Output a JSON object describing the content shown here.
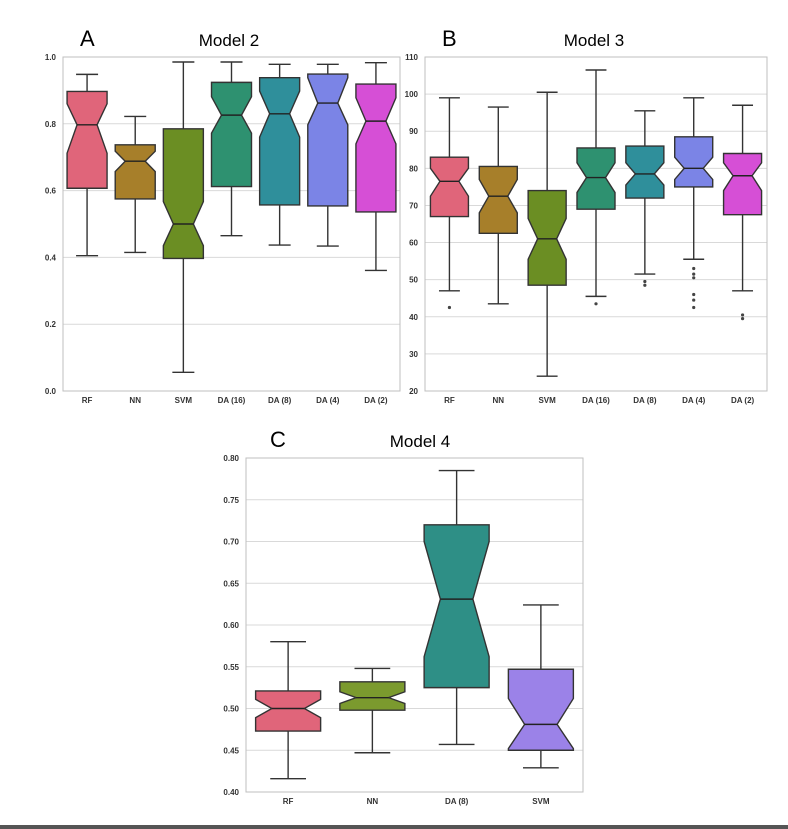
{
  "chart_data": [
    {
      "type": "box",
      "panel_label": "A",
      "title": "Model 2",
      "notched": true,
      "ylim": [
        0.0,
        1.0
      ],
      "yticks": [
        "0.0",
        "0.2",
        "0.4",
        "0.6",
        "0.8",
        "1.0"
      ],
      "ytick_values": [
        0.0,
        0.2,
        0.4,
        0.6,
        0.8,
        1.0
      ],
      "grid": true,
      "categories": [
        "RF",
        "NN",
        "SVM",
        "DA (16)",
        "DA (8)",
        "DA (4)",
        "DA (2)"
      ],
      "boxes": [
        {
          "whislo": 0.405,
          "q1": 0.607,
          "med": 0.797,
          "q3": 0.897,
          "whishi": 0.948,
          "notch_lo": 0.712,
          "notch_hi": 0.86,
          "fliers": []
        },
        {
          "whislo": 0.415,
          "q1": 0.575,
          "med": 0.688,
          "q3": 0.737,
          "whishi": 0.822,
          "notch_lo": 0.657,
          "notch_hi": 0.718,
          "fliers": []
        },
        {
          "whislo": 0.056,
          "q1": 0.397,
          "med": 0.5,
          "q3": 0.785,
          "whishi": 0.985,
          "notch_lo": 0.435,
          "notch_hi": 0.567,
          "fliers": []
        },
        {
          "whislo": 0.465,
          "q1": 0.612,
          "med": 0.826,
          "q3": 0.924,
          "whishi": 0.985,
          "notch_lo": 0.772,
          "notch_hi": 0.881,
          "fliers": []
        },
        {
          "whislo": 0.437,
          "q1": 0.557,
          "med": 0.83,
          "q3": 0.938,
          "whishi": 0.978,
          "notch_lo": 0.76,
          "notch_hi": 0.898,
          "fliers": []
        },
        {
          "whislo": 0.434,
          "q1": 0.554,
          "med": 0.862,
          "q3": 0.949,
          "whishi": 0.978,
          "notch_lo": 0.797,
          "notch_hi": 0.938,
          "fliers": []
        },
        {
          "whislo": 0.361,
          "q1": 0.536,
          "med": 0.808,
          "q3": 0.919,
          "whishi": 0.983,
          "notch_lo": 0.74,
          "notch_hi": 0.878,
          "fliers": []
        }
      ],
      "colors": [
        "#e0657a",
        "#a77f2a",
        "#6b8e23",
        "#2e9170",
        "#2f8f9b",
        "#7b84e6",
        "#d64fd6"
      ]
    },
    {
      "type": "box",
      "panel_label": "B",
      "title": "Model 3",
      "notched": true,
      "ylim": [
        20,
        110
      ],
      "yticks": [
        "20",
        "30",
        "40",
        "50",
        "60",
        "70",
        "80",
        "90",
        "100",
        "110"
      ],
      "ytick_values": [
        20,
        30,
        40,
        50,
        60,
        70,
        80,
        90,
        100,
        110
      ],
      "grid": true,
      "categories": [
        "RF",
        "NN",
        "SVM",
        "DA (16)",
        "DA (8)",
        "DA (4)",
        "DA (2)"
      ],
      "boxes": [
        {
          "whislo": 47,
          "q1": 67,
          "med": 76.5,
          "q3": 83,
          "whishi": 99,
          "notch_lo": 72.5,
          "notch_hi": 80,
          "fliers": [
            42.5
          ]
        },
        {
          "whislo": 43.5,
          "q1": 62.5,
          "med": 72.5,
          "q3": 80.5,
          "whishi": 96.5,
          "notch_lo": 68,
          "notch_hi": 77,
          "fliers": []
        },
        {
          "whislo": 24,
          "q1": 48.5,
          "med": 61,
          "q3": 74,
          "whishi": 100.5,
          "notch_lo": 55.5,
          "notch_hi": 66.5,
          "fliers": []
        },
        {
          "whislo": 45.5,
          "q1": 69,
          "med": 77.5,
          "q3": 85.5,
          "whishi": 106.5,
          "notch_lo": 73.5,
          "notch_hi": 81.5,
          "fliers": [
            43.5
          ]
        },
        {
          "whislo": 51.5,
          "q1": 72,
          "med": 78.5,
          "q3": 86,
          "whishi": 95.5,
          "notch_lo": 75.5,
          "notch_hi": 81.5,
          "fliers": [
            49.5,
            48.5
          ]
        },
        {
          "whislo": 55.5,
          "q1": 75,
          "med": 80,
          "q3": 88.5,
          "whishi": 99,
          "notch_lo": 77,
          "notch_hi": 83,
          "fliers": [
            53,
            51.5,
            50.5,
            46,
            44.5,
            42.5
          ]
        },
        {
          "whislo": 47,
          "q1": 67.5,
          "med": 78,
          "q3": 84,
          "whishi": 97,
          "notch_lo": 74,
          "notch_hi": 81.5,
          "fliers": [
            40.5,
            39.5
          ]
        }
      ],
      "colors": [
        "#e0657a",
        "#a77f2a",
        "#6b8e23",
        "#2e9170",
        "#2f8f9b",
        "#7b84e6",
        "#d64fd6"
      ]
    },
    {
      "type": "box",
      "panel_label": "C",
      "title": "Model 4",
      "notched": true,
      "ylim": [
        0.4,
        0.8
      ],
      "yticks": [
        "0.40",
        "0.45",
        "0.50",
        "0.55",
        "0.60",
        "0.65",
        "0.70",
        "0.75",
        "0.80"
      ],
      "ytick_values": [
        0.4,
        0.45,
        0.5,
        0.55,
        0.6,
        0.65,
        0.7,
        0.75,
        0.8
      ],
      "grid": true,
      "categories": [
        "RF",
        "NN",
        "DA (8)",
        "SVM"
      ],
      "boxes": [
        {
          "whislo": 0.416,
          "q1": 0.473,
          "med": 0.5,
          "q3": 0.521,
          "whishi": 0.58,
          "notch_lo": 0.489,
          "notch_hi": 0.511,
          "fliers": []
        },
        {
          "whislo": 0.447,
          "q1": 0.498,
          "med": 0.513,
          "q3": 0.532,
          "whishi": 0.548,
          "notch_lo": 0.506,
          "notch_hi": 0.52,
          "fliers": []
        },
        {
          "whislo": 0.457,
          "q1": 0.525,
          "med": 0.631,
          "q3": 0.72,
          "whishi": 0.785,
          "notch_lo": 0.562,
          "notch_hi": 0.7,
          "fliers": []
        },
        {
          "whislo": 0.429,
          "q1": 0.45,
          "med": 0.481,
          "q3": 0.547,
          "whishi": 0.624,
          "notch_lo": 0.452,
          "notch_hi": 0.512,
          "fliers": []
        }
      ],
      "colors": [
        "#e0657a",
        "#7b9a2e",
        "#2e8f86",
        "#9b82e8"
      ]
    }
  ]
}
